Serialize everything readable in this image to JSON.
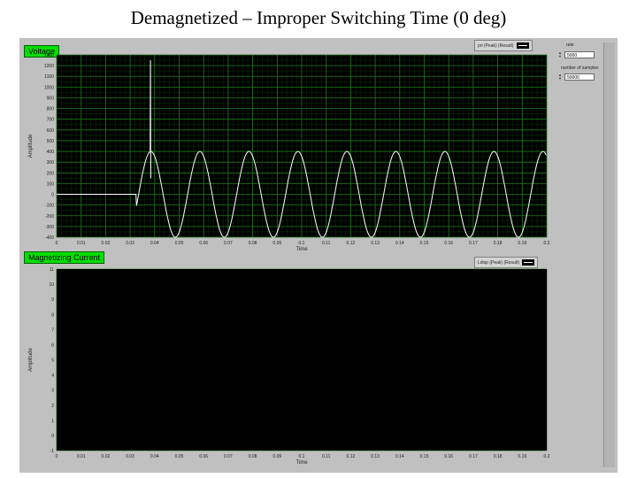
{
  "page": {
    "title": "Demagnetized – Improper Switching Time (0 deg)"
  },
  "controls": {
    "rate_label": "rate",
    "rate_value": "5000",
    "samples_label": "number of samples",
    "samples_value": "50000"
  },
  "top_graph": {
    "section_label": "Voltage",
    "legend": "pri (Peak) (Result)",
    "ylabel": "Amplitude",
    "xlabel": "Time",
    "yticks": [
      "1300",
      "1200",
      "1100",
      "1000",
      "900",
      "800",
      "700",
      "600",
      "500",
      "400",
      "300",
      "200",
      "100",
      "0",
      "-100",
      "-200",
      "-300",
      "-400"
    ],
    "xticks": [
      "0",
      "0.01",
      "0.02",
      "0.03",
      "0.04",
      "0.05",
      "0.06",
      "0.07",
      "0.08",
      "0.09",
      "0.1",
      "0.11",
      "0.12",
      "0.13",
      "0.14",
      "0.15",
      "0.16",
      "0.17",
      "0.18",
      "0.19",
      "0.2"
    ]
  },
  "bottom_graph": {
    "section_label": "Magnetizing Current",
    "legend": "Ldisp (Peak) (Result)",
    "ylabel": "Amplitude",
    "xlabel": "Time",
    "yticks": [
      "11",
      "10",
      "9",
      "8",
      "7",
      "6",
      "5",
      "4",
      "3",
      "2",
      "1",
      "0",
      "-1"
    ],
    "xticks": [
      "0",
      "0.01",
      "0.02",
      "0.03",
      "0.04",
      "0.05",
      "0.06",
      "0.07",
      "0.08",
      "0.09",
      "0.1",
      "0.11",
      "0.12",
      "0.13",
      "0.14",
      "0.15",
      "0.16",
      "0.17",
      "0.18",
      "0.19",
      "0.2"
    ]
  },
  "colors": {
    "plot_bg": "#000000",
    "grid": "#1f7a1f",
    "trace": "#ffffff",
    "label_bg": "#00e000",
    "panel": "#c0c0c0"
  }
}
